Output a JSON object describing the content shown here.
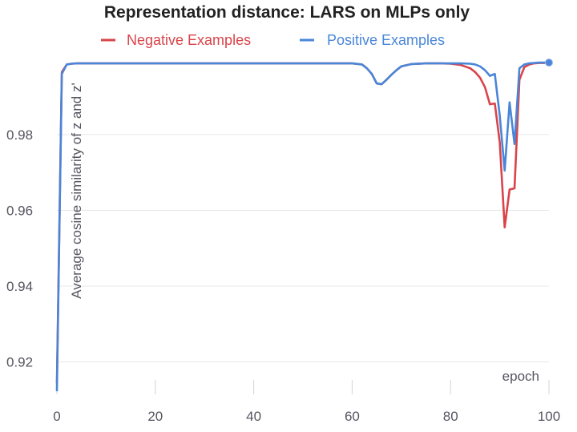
{
  "chart_data": {
    "type": "line",
    "title": "Representation distance: LARS on MLPs only",
    "xlabel": "epoch",
    "ylabel": "Average cosine similarity of z and z'",
    "xlim": [
      0,
      100
    ],
    "ylim": [
      0.9125,
      1.0005
    ],
    "x_ticks": [
      0,
      20,
      40,
      60,
      80,
      100
    ],
    "y_ticks": [
      0.92,
      0.94,
      0.96,
      0.98
    ],
    "grid": "horizontal",
    "legend_position": "top",
    "series": [
      {
        "name": "Negative Examples",
        "color": "#d9444a",
        "x": [
          0,
          1,
          2,
          3,
          4,
          5,
          10,
          20,
          30,
          40,
          50,
          60,
          62,
          63,
          64,
          65,
          66,
          67,
          68,
          69,
          70,
          72,
          75,
          78,
          80,
          82,
          84,
          85,
          86,
          87,
          88,
          89,
          90,
          91,
          92,
          93,
          94,
          95,
          96,
          97,
          98,
          99,
          100
        ],
        "values": [
          0.9145,
          0.9965,
          0.9985,
          0.9987,
          0.9988,
          0.9988,
          0.9988,
          0.9988,
          0.9988,
          0.9988,
          0.9988,
          0.9988,
          0.9985,
          0.9975,
          0.996,
          0.9935,
          0.9933,
          0.9945,
          0.9958,
          0.997,
          0.998,
          0.9986,
          0.9988,
          0.9988,
          0.9987,
          0.9984,
          0.9975,
          0.9965,
          0.995,
          0.9925,
          0.988,
          0.9882,
          0.978,
          0.9555,
          0.9655,
          0.9658,
          0.9945,
          0.9978,
          0.9985,
          0.9988,
          0.9989,
          0.9989,
          0.999
        ]
      },
      {
        "name": "Positive Examples",
        "color": "#4a86d8",
        "x": [
          0,
          1,
          2,
          3,
          4,
          5,
          10,
          20,
          30,
          40,
          50,
          60,
          62,
          63,
          64,
          65,
          66,
          67,
          68,
          69,
          70,
          72,
          75,
          78,
          80,
          82,
          84,
          85,
          86,
          87,
          88,
          89,
          90,
          91,
          92,
          93,
          94,
          95,
          96,
          97,
          98,
          99,
          100
        ],
        "values": [
          0.9125,
          0.996,
          0.9985,
          0.9987,
          0.9988,
          0.9988,
          0.9988,
          0.9988,
          0.9988,
          0.9988,
          0.9988,
          0.9988,
          0.9985,
          0.9975,
          0.996,
          0.9935,
          0.9933,
          0.9945,
          0.9958,
          0.997,
          0.998,
          0.9986,
          0.9988,
          0.9988,
          0.9988,
          0.9988,
          0.9987,
          0.9985,
          0.998,
          0.997,
          0.9955,
          0.996,
          0.985,
          0.9705,
          0.9885,
          0.9775,
          0.9975,
          0.9985,
          0.9988,
          0.9989,
          0.999,
          0.999,
          0.999
        ]
      }
    ]
  }
}
